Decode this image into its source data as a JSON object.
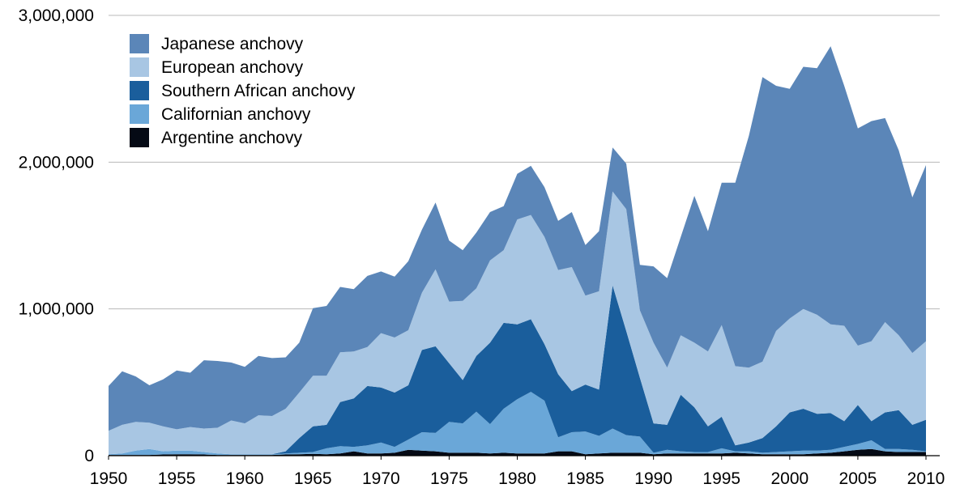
{
  "chart_data": {
    "type": "area",
    "stacked": true,
    "title": "",
    "xlabel": "",
    "ylabel": "",
    "value_unit_note": "series values in thousands of tonnes",
    "xlim": [
      1950,
      2010
    ],
    "ylim": [
      0,
      3000
    ],
    "grid": true,
    "legend_position": "top-left",
    "x_ticks": [
      1950,
      1955,
      1960,
      1965,
      1970,
      1975,
      1980,
      1985,
      1990,
      1995,
      2000,
      2005,
      2010
    ],
    "x_tick_labels": [
      "1950",
      "1955",
      "1960",
      "1965",
      "1970",
      "1975",
      "1980",
      "1985",
      "1990",
      "1995",
      "2000",
      "2005",
      "2010"
    ],
    "y_ticks": [
      0,
      1000,
      2000,
      3000
    ],
    "y_tick_labels": [
      "0",
      "1,000,000",
      "2,000,000",
      "3,000,000"
    ],
    "x_start": 1950,
    "series": [
      {
        "name": "Argentine anchovy",
        "color": "#050a15",
        "values": [
          5,
          5,
          5,
          5,
          8,
          10,
          10,
          8,
          5,
          5,
          5,
          5,
          5,
          8,
          10,
          12,
          10,
          15,
          30,
          15,
          15,
          20,
          40,
          35,
          30,
          20,
          20,
          20,
          15,
          20,
          15,
          15,
          15,
          30,
          30,
          10,
          15,
          20,
          20,
          20,
          10,
          15,
          15,
          15,
          15,
          15,
          20,
          15,
          10,
          10,
          10,
          10,
          15,
          20,
          30,
          40,
          45,
          30,
          25,
          25,
          25
        ]
      },
      {
        "name": "Californian anchovy",
        "color": "#6aa7d8",
        "values": [
          5,
          10,
          30,
          40,
          22,
          25,
          25,
          17,
          10,
          5,
          5,
          5,
          5,
          7,
          10,
          13,
          40,
          50,
          30,
          55,
          75,
          40,
          70,
          125,
          125,
          210,
          200,
          280,
          200,
          300,
          370,
          420,
          360,
          95,
          130,
          155,
          120,
          165,
          120,
          110,
          10,
          25,
          15,
          10,
          10,
          35,
          10,
          15,
          10,
          15,
          20,
          25,
          20,
          20,
          30,
          40,
          60,
          15,
          20,
          15,
          5
        ]
      },
      {
        "name": "Southern African anchovy",
        "color": "#1a5e9c",
        "values": [
          0,
          0,
          0,
          0,
          0,
          0,
          0,
          0,
          0,
          0,
          0,
          0,
          0,
          15,
          100,
          175,
          160,
          300,
          330,
          405,
          375,
          370,
          370,
          560,
          590,
          400,
          295,
          380,
          555,
          585,
          510,
          495,
          385,
          430,
          280,
          320,
          315,
          975,
          710,
          400,
          200,
          170,
          385,
          305,
          175,
          215,
          40,
          60,
          100,
          175,
          265,
          285,
          250,
          250,
          175,
          265,
          130,
          250,
          265,
          170,
          215
        ]
      },
      {
        "name": "European anchovy",
        "color": "#a8c6e3",
        "values": [
          160,
          195,
          195,
          180,
          170,
          145,
          160,
          160,
          175,
          230,
          210,
          265,
          260,
          290,
          310,
          345,
          335,
          340,
          320,
          265,
          370,
          375,
          375,
          390,
          525,
          420,
          540,
          460,
          560,
          495,
          715,
          710,
          730,
          710,
          845,
          605,
          670,
          640,
          830,
          460,
          550,
          390,
          405,
          440,
          510,
          625,
          540,
          510,
          520,
          650,
          640,
          680,
          675,
          605,
          650,
          405,
          545,
          615,
          510,
          490,
          535
        ]
      },
      {
        "name": "Japanese anchovy",
        "color": "#5b86b8",
        "values": [
          305,
          365,
          310,
          255,
          320,
          400,
          370,
          465,
          455,
          395,
          385,
          405,
          395,
          350,
          340,
          460,
          475,
          445,
          425,
          485,
          420,
          415,
          470,
          430,
          455,
          415,
          345,
          380,
          330,
          300,
          310,
          335,
          340,
          335,
          375,
          345,
          410,
          300,
          310,
          310,
          520,
          610,
          670,
          1000,
          820,
          970,
          1250,
          1580,
          1940,
          1670,
          1565,
          1650,
          1680,
          1895,
          1635,
          1480,
          1500,
          1390,
          1260,
          1060,
          1200
        ]
      }
    ],
    "legend_order": [
      "Japanese anchovy",
      "European anchovy",
      "Southern African anchovy",
      "Californian anchovy",
      "Argentine anchovy"
    ]
  }
}
